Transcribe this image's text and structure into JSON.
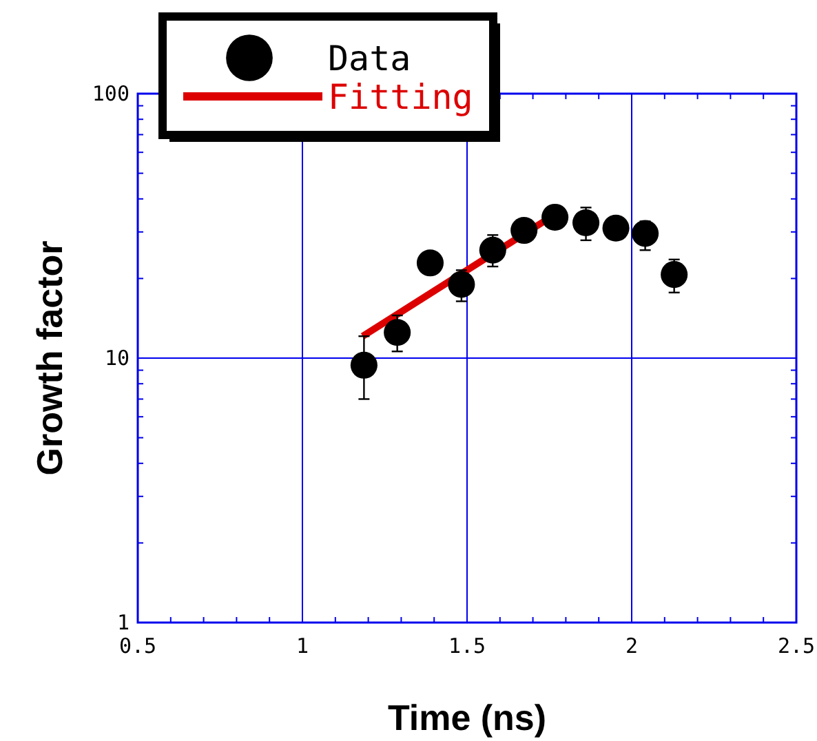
{
  "chart_data": {
    "type": "scatter",
    "xlabel": "Time (ns)",
    "ylabel": "Growth factor",
    "log": "y",
    "xlim": [
      0.5,
      2.5
    ],
    "ylim": [
      1,
      100
    ],
    "xticks": [
      {
        "value": 0.5,
        "label": "0.5"
      },
      {
        "value": 0.6,
        "label": null
      },
      {
        "value": 0.7,
        "label": null
      },
      {
        "value": 0.8,
        "label": null
      },
      {
        "value": 0.9,
        "label": null
      },
      {
        "value": 1,
        "label": "1"
      },
      {
        "value": 1.1,
        "label": null
      },
      {
        "value": 1.2,
        "label": null
      },
      {
        "value": 1.3,
        "label": null
      },
      {
        "value": 1.4,
        "label": null
      },
      {
        "value": 1.5,
        "label": "1.5"
      },
      {
        "value": 1.6,
        "label": null
      },
      {
        "value": 1.7,
        "label": null
      },
      {
        "value": 1.8,
        "label": null
      },
      {
        "value": 1.9,
        "label": null
      },
      {
        "value": 2,
        "label": "2"
      },
      {
        "value": 2.1,
        "label": null
      },
      {
        "value": 2.2,
        "label": null
      },
      {
        "value": 2.3,
        "label": null
      },
      {
        "value": 2.4,
        "label": null
      },
      {
        "value": 2.5,
        "label": "2.5"
      }
    ],
    "yticks": [
      1,
      {
        "value": 2,
        "label": null
      },
      {
        "value": 3,
        "label": null
      },
      {
        "value": 4,
        "label": null
      },
      {
        "value": 5,
        "label": null
      },
      {
        "value": 6,
        "label": null
      },
      {
        "value": 7,
        "label": null
      },
      {
        "value": 8,
        "label": null
      },
      {
        "value": 9,
        "label": null
      },
      10,
      {
        "value": 20,
        "label": null
      },
      {
        "value": 30,
        "label": null
      },
      {
        "value": 40,
        "label": null
      },
      {
        "value": 50,
        "label": null
      },
      {
        "value": 60,
        "label": null
      },
      {
        "value": 70,
        "label": null
      },
      {
        "value": 80,
        "label": null
      },
      {
        "value": 90,
        "label": null
      },
      100
    ],
    "grid": true,
    "legend": "top left",
    "series": [
      {
        "name": "Data",
        "color": "#000000",
        "marker": "circle",
        "x": [
          1.187,
          1.288,
          1.388,
          1.483,
          1.578,
          1.673,
          1.767,
          1.861,
          1.952,
          2.041,
          2.129
        ],
        "values": [
          9.4,
          12.5,
          22.9,
          19.0,
          25.6,
          30.4,
          34.1,
          32.5,
          31.0,
          29.6,
          20.7
        ],
        "errors": [
          [
            7.0,
            12.1
          ],
          [
            10.6,
            14.5
          ],
          null,
          [
            16.4,
            21.5
          ],
          [
            22.2,
            29.2
          ],
          null,
          null,
          [
            27.9,
            37.1
          ],
          null,
          [
            25.6,
            32.9
          ],
          [
            17.7,
            23.6
          ]
        ]
      },
      {
        "name": "Fitting",
        "type": "line",
        "color": "#dd0000",
        "line_style": "solid",
        "x": [
          1.183,
          1.734
        ],
        "values": [
          12.1,
          32.9
        ]
      }
    ]
  }
}
